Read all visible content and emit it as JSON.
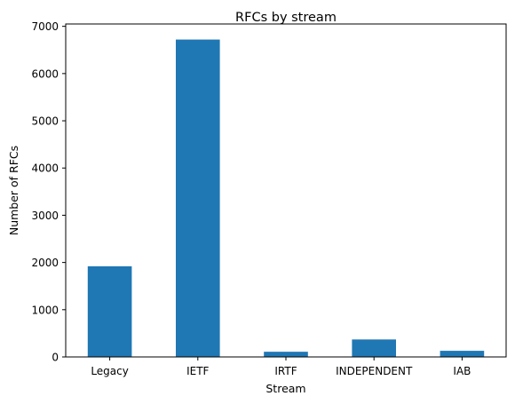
{
  "chart_data": {
    "type": "bar",
    "title": "RFCs by stream",
    "xlabel": "Stream",
    "ylabel": "Number of RFCs",
    "categories": [
      "Legacy",
      "IETF",
      "IRTF",
      "INDEPENDENT",
      "IAB"
    ],
    "values": [
      1920,
      6720,
      110,
      370,
      130
    ],
    "ylim": [
      0,
      7050
    ],
    "yticks": [
      "0",
      "1000",
      "2000",
      "3000",
      "4000",
      "5000",
      "6000",
      "7000"
    ],
    "bar_color": "#1f77b4",
    "grid": false
  }
}
